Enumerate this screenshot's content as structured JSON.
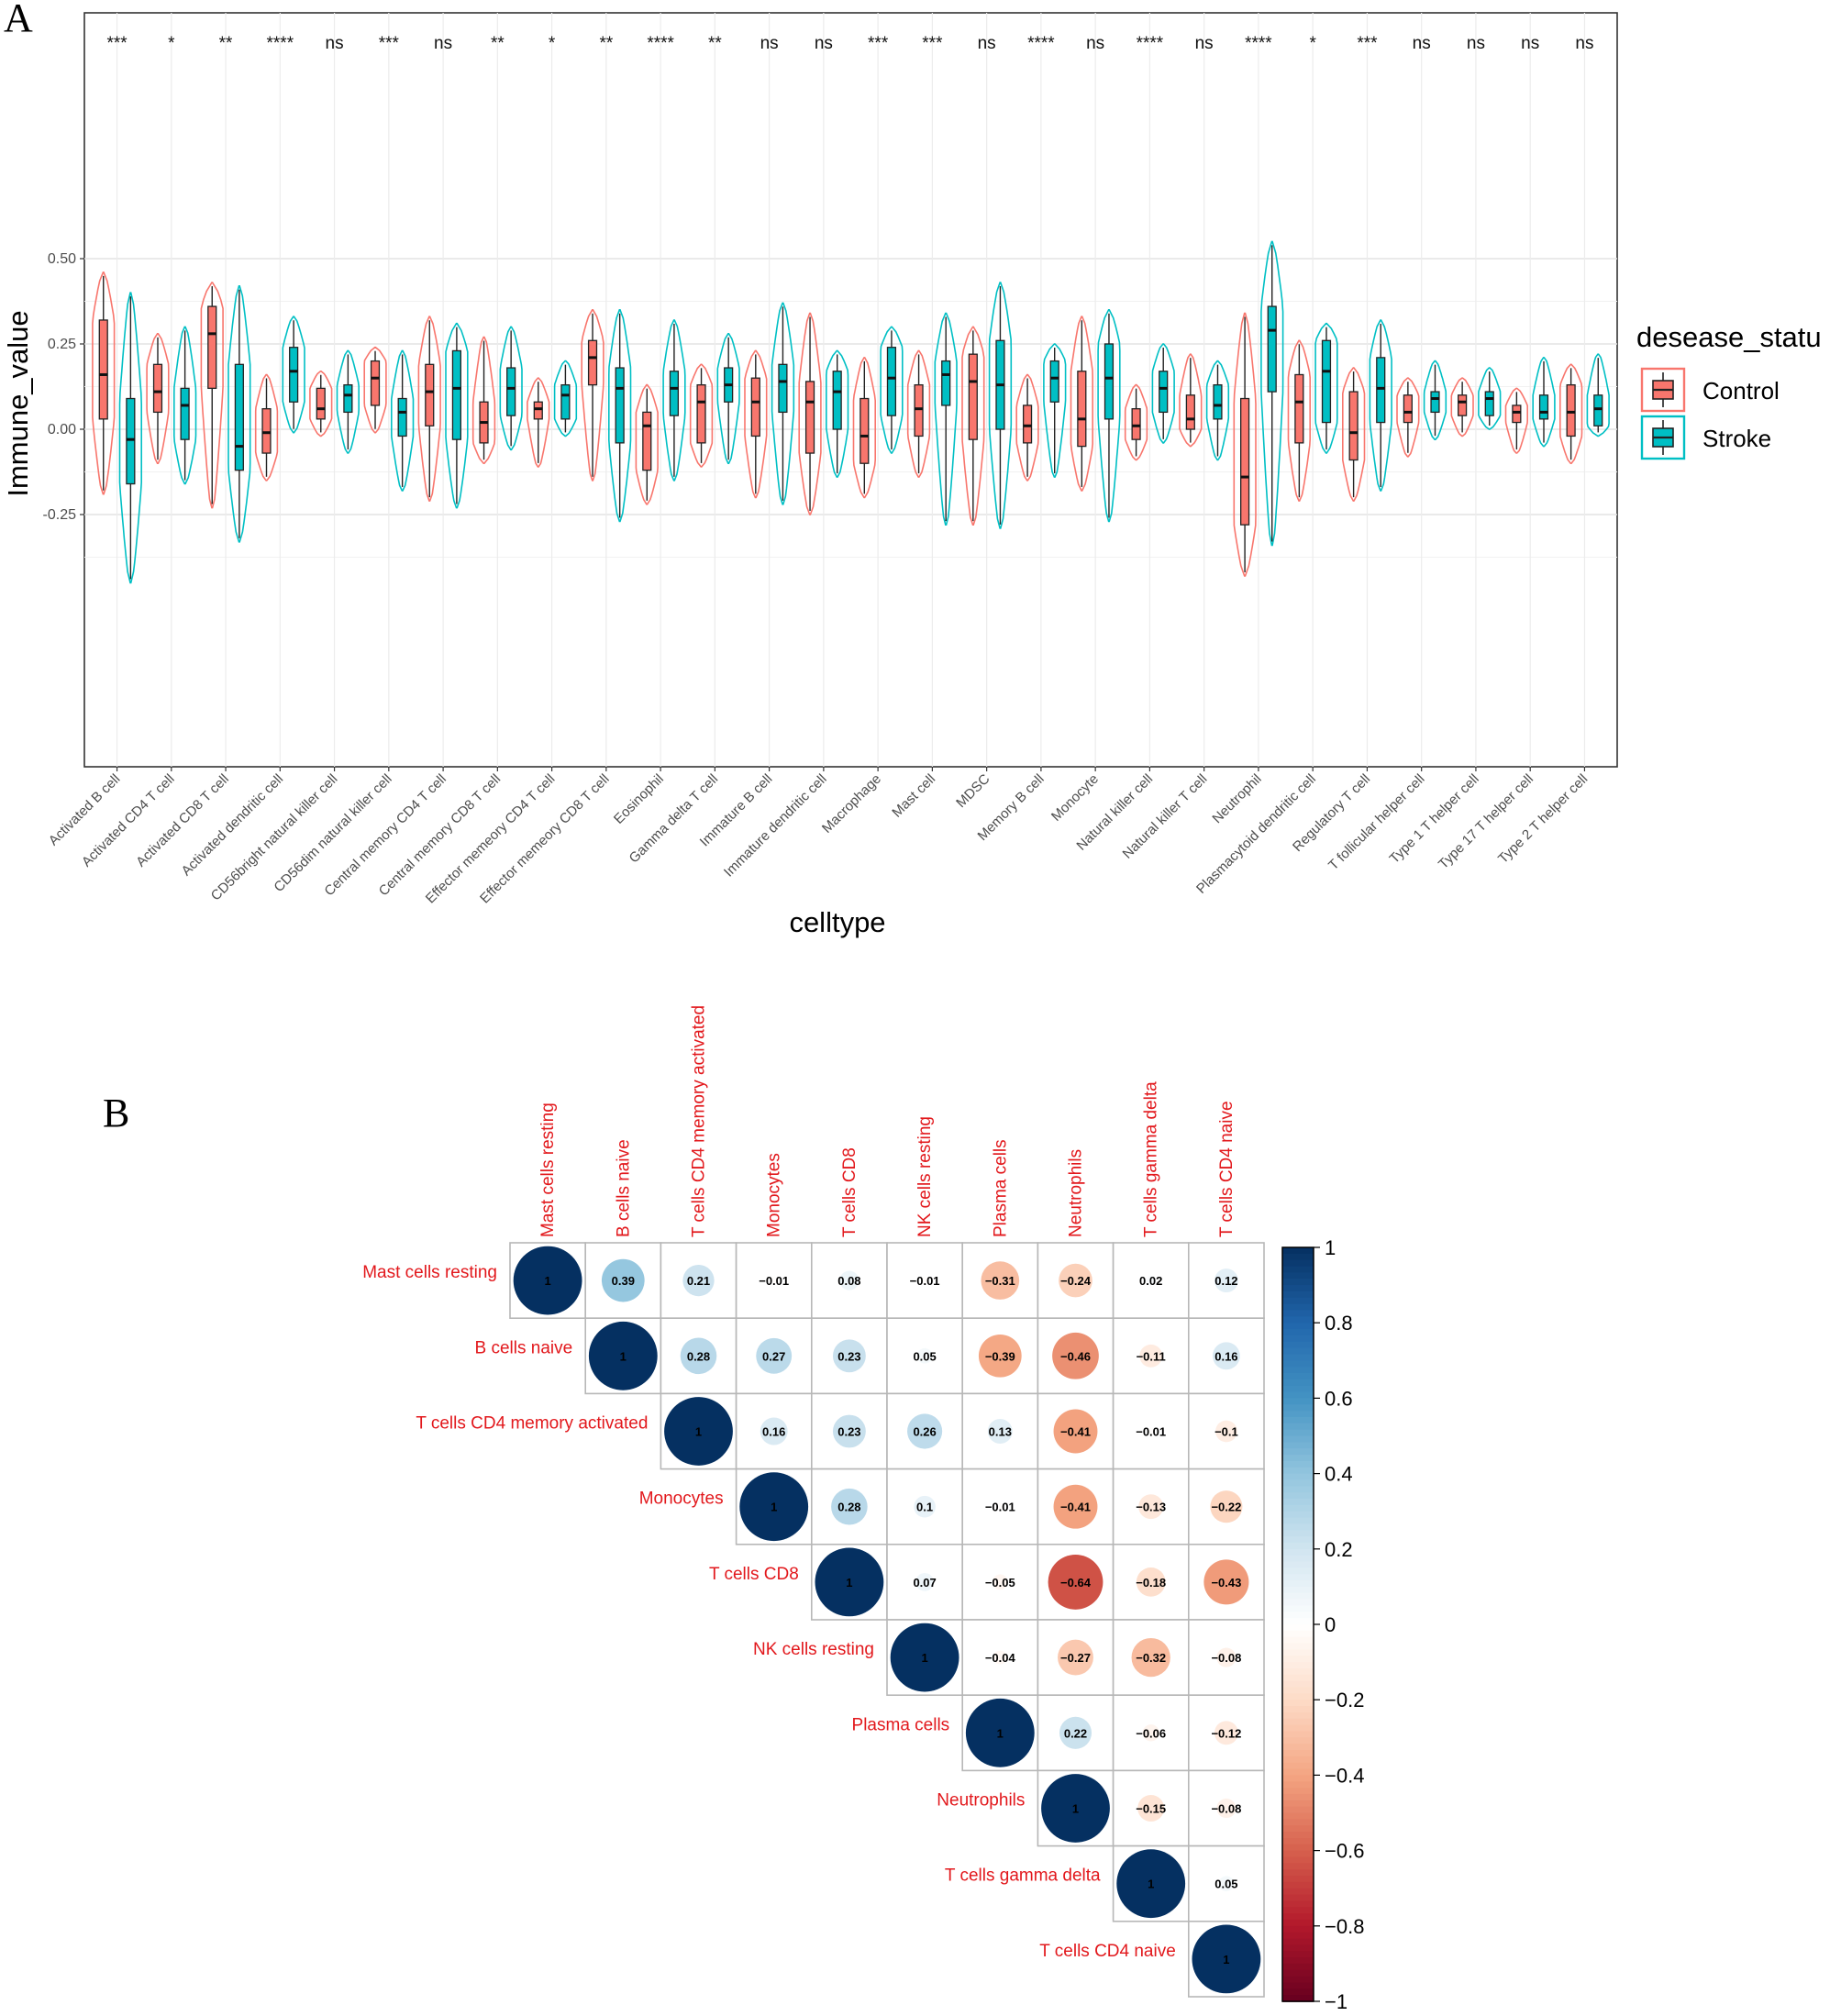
{
  "panel_a_letter": "A",
  "panel_b_letter": "B",
  "chart_data": [
    {
      "type": "violin-box",
      "xlabel": "celltype",
      "ylabel": "Immune_value",
      "ylim": [
        -0.5,
        0.6
      ],
      "yticks": [
        "0.50",
        "0.25",
        "0.00",
        "-0.25"
      ],
      "ytick_values": [
        0.5,
        0.25,
        0.0,
        -0.25
      ],
      "grid": true,
      "legend": {
        "title": "desease_statu",
        "position": "right"
      },
      "series": [
        {
          "name": "Control",
          "color": "#f8766d"
        },
        {
          "name": "Stroke",
          "color": "#00bfc4"
        }
      ],
      "categories": [
        "Activated B cell",
        "Activated CD4 T cell",
        "Activated CD8 T cell",
        "Activated dendritic cell",
        "CD56bright natural killer cell",
        "CD56dim natural killer cell",
        "Central memory CD4 T cell",
        "Central memory CD8 T cell",
        "Effector memeory CD4 T cell",
        "Effector memeory CD8 T cell",
        "Eosinophil",
        "Gamma delta T cell",
        "Immature  B cell",
        "Immature dendritic cell",
        "Macrophage",
        "Mast cell",
        "MDSC",
        "Memory B cell",
        "Monocyte",
        "Natural killer cell",
        "Natural killer T cell",
        "Neutrophil",
        "Plasmacytoid dendritic cell",
        "Regulatory T cell",
        "T follicular helper cell",
        "Type 1 T helper cell",
        "Type 17 T helper cell",
        "Type 2 T helper cell"
      ],
      "significance": [
        "***",
        "*",
        "**",
        "****",
        "ns",
        "***",
        "ns",
        "**",
        "*",
        "**",
        "****",
        "**",
        "ns",
        "ns",
        "***",
        "***",
        "ns",
        "****",
        "ns",
        "****",
        "ns",
        "****",
        "*",
        "***",
        "ns",
        "ns",
        "ns",
        "ns"
      ],
      "groups": [
        {
          "control": {
            "min": -0.19,
            "q1": 0.03,
            "med": 0.16,
            "q3": 0.32,
            "max": 0.46
          },
          "stroke": {
            "min": -0.45,
            "q1": -0.16,
            "med": -0.03,
            "q3": 0.09,
            "max": 0.4
          }
        },
        {
          "control": {
            "min": -0.1,
            "q1": 0.05,
            "med": 0.11,
            "q3": 0.19,
            "max": 0.28
          },
          "stroke": {
            "min": -0.16,
            "q1": -0.03,
            "med": 0.07,
            "q3": 0.12,
            "max": 0.3
          }
        },
        {
          "control": {
            "min": -0.23,
            "q1": 0.12,
            "med": 0.28,
            "q3": 0.36,
            "max": 0.43
          },
          "stroke": {
            "min": -0.33,
            "q1": -0.12,
            "med": -0.05,
            "q3": 0.19,
            "max": 0.42
          }
        },
        {
          "control": {
            "min": -0.15,
            "q1": -0.07,
            "med": -0.01,
            "q3": 0.06,
            "max": 0.16
          },
          "stroke": {
            "min": -0.01,
            "q1": 0.08,
            "med": 0.17,
            "q3": 0.24,
            "max": 0.33
          }
        },
        {
          "control": {
            "min": -0.02,
            "q1": 0.03,
            "med": 0.06,
            "q3": 0.12,
            "max": 0.17
          },
          "stroke": {
            "min": -0.07,
            "q1": 0.05,
            "med": 0.1,
            "q3": 0.13,
            "max": 0.23
          }
        },
        {
          "control": {
            "min": -0.01,
            "q1": 0.07,
            "med": 0.15,
            "q3": 0.2,
            "max": 0.24
          },
          "stroke": {
            "min": -0.18,
            "q1": -0.02,
            "med": 0.05,
            "q3": 0.09,
            "max": 0.23
          }
        },
        {
          "control": {
            "min": -0.21,
            "q1": 0.01,
            "med": 0.11,
            "q3": 0.19,
            "max": 0.33
          },
          "stroke": {
            "min": -0.23,
            "q1": -0.03,
            "med": 0.12,
            "q3": 0.23,
            "max": 0.31
          }
        },
        {
          "control": {
            "min": -0.1,
            "q1": -0.04,
            "med": 0.02,
            "q3": 0.08,
            "max": 0.27
          },
          "stroke": {
            "min": -0.06,
            "q1": 0.04,
            "med": 0.12,
            "q3": 0.18,
            "max": 0.3
          }
        },
        {
          "control": {
            "min": -0.11,
            "q1": 0.03,
            "med": 0.06,
            "q3": 0.08,
            "max": 0.15
          },
          "stroke": {
            "min": -0.02,
            "q1": 0.03,
            "med": 0.1,
            "q3": 0.13,
            "max": 0.2
          }
        },
        {
          "control": {
            "min": -0.15,
            "q1": 0.13,
            "med": 0.21,
            "q3": 0.26,
            "max": 0.35
          },
          "stroke": {
            "min": -0.27,
            "q1": -0.04,
            "med": 0.12,
            "q3": 0.18,
            "max": 0.35
          }
        },
        {
          "control": {
            "min": -0.22,
            "q1": -0.12,
            "med": 0.01,
            "q3": 0.05,
            "max": 0.13
          },
          "stroke": {
            "min": -0.15,
            "q1": 0.04,
            "med": 0.12,
            "q3": 0.17,
            "max": 0.32
          }
        },
        {
          "control": {
            "min": -0.11,
            "q1": -0.04,
            "med": 0.08,
            "q3": 0.13,
            "max": 0.19
          },
          "stroke": {
            "min": -0.1,
            "q1": 0.08,
            "med": 0.13,
            "q3": 0.18,
            "max": 0.28
          }
        },
        {
          "control": {
            "min": -0.2,
            "q1": -0.02,
            "med": 0.08,
            "q3": 0.15,
            "max": 0.23
          },
          "stroke": {
            "min": -0.22,
            "q1": 0.05,
            "med": 0.14,
            "q3": 0.19,
            "max": 0.37
          }
        },
        {
          "control": {
            "min": -0.25,
            "q1": -0.07,
            "med": 0.08,
            "q3": 0.14,
            "max": 0.34
          },
          "stroke": {
            "min": -0.14,
            "q1": 0.0,
            "med": 0.11,
            "q3": 0.17,
            "max": 0.23
          }
        },
        {
          "control": {
            "min": -0.2,
            "q1": -0.1,
            "med": -0.02,
            "q3": 0.09,
            "max": 0.21
          },
          "stroke": {
            "min": -0.07,
            "q1": 0.04,
            "med": 0.15,
            "q3": 0.24,
            "max": 0.3
          }
        },
        {
          "control": {
            "min": -0.14,
            "q1": -0.02,
            "med": 0.06,
            "q3": 0.13,
            "max": 0.23
          },
          "stroke": {
            "min": -0.28,
            "q1": 0.07,
            "med": 0.16,
            "q3": 0.2,
            "max": 0.34
          }
        },
        {
          "control": {
            "min": -0.28,
            "q1": -0.03,
            "med": 0.14,
            "q3": 0.22,
            "max": 0.3
          },
          "stroke": {
            "min": -0.29,
            "q1": 0.0,
            "med": 0.13,
            "q3": 0.26,
            "max": 0.43
          }
        },
        {
          "control": {
            "min": -0.15,
            "q1": -0.04,
            "med": 0.01,
            "q3": 0.07,
            "max": 0.16
          },
          "stroke": {
            "min": -0.14,
            "q1": 0.08,
            "med": 0.15,
            "q3": 0.2,
            "max": 0.25
          }
        },
        {
          "control": {
            "min": -0.18,
            "q1": -0.05,
            "med": 0.03,
            "q3": 0.17,
            "max": 0.33
          },
          "stroke": {
            "min": -0.27,
            "q1": 0.03,
            "med": 0.15,
            "q3": 0.25,
            "max": 0.35
          }
        },
        {
          "control": {
            "min": -0.09,
            "q1": -0.03,
            "med": 0.01,
            "q3": 0.06,
            "max": 0.13
          },
          "stroke": {
            "min": -0.04,
            "q1": 0.05,
            "med": 0.12,
            "q3": 0.17,
            "max": 0.25
          }
        },
        {
          "control": {
            "min": -0.05,
            "q1": 0.0,
            "med": 0.03,
            "q3": 0.1,
            "max": 0.22
          },
          "stroke": {
            "min": -0.09,
            "q1": 0.03,
            "med": 0.07,
            "q3": 0.13,
            "max": 0.2
          }
        },
        {
          "control": {
            "min": -0.43,
            "q1": -0.28,
            "med": -0.14,
            "q3": 0.09,
            "max": 0.34
          },
          "stroke": {
            "min": -0.34,
            "q1": 0.11,
            "med": 0.29,
            "q3": 0.36,
            "max": 0.55
          }
        },
        {
          "control": {
            "min": -0.21,
            "q1": -0.04,
            "med": 0.08,
            "q3": 0.16,
            "max": 0.26
          },
          "stroke": {
            "min": -0.07,
            "q1": 0.02,
            "med": 0.17,
            "q3": 0.26,
            "max": 0.31
          }
        },
        {
          "control": {
            "min": -0.21,
            "q1": -0.09,
            "med": -0.01,
            "q3": 0.11,
            "max": 0.18
          },
          "stroke": {
            "min": -0.18,
            "q1": 0.02,
            "med": 0.12,
            "q3": 0.21,
            "max": 0.32
          }
        },
        {
          "control": {
            "min": -0.08,
            "q1": 0.02,
            "med": 0.05,
            "q3": 0.1,
            "max": 0.15
          },
          "stroke": {
            "min": -0.03,
            "q1": 0.05,
            "med": 0.09,
            "q3": 0.11,
            "max": 0.2
          }
        },
        {
          "control": {
            "min": -0.02,
            "q1": 0.04,
            "med": 0.08,
            "q3": 0.1,
            "max": 0.15
          },
          "stroke": {
            "min": 0.0,
            "q1": 0.04,
            "med": 0.09,
            "q3": 0.11,
            "max": 0.18
          }
        },
        {
          "control": {
            "min": -0.07,
            "q1": 0.02,
            "med": 0.05,
            "q3": 0.07,
            "max": 0.12
          },
          "stroke": {
            "min": -0.05,
            "q1": 0.03,
            "med": 0.05,
            "q3": 0.1,
            "max": 0.21
          }
        },
        {
          "control": {
            "min": -0.1,
            "q1": -0.02,
            "med": 0.05,
            "q3": 0.13,
            "max": 0.19
          },
          "stroke": {
            "min": -0.02,
            "q1": 0.01,
            "med": 0.06,
            "q3": 0.1,
            "max": 0.22
          }
        }
      ]
    },
    {
      "type": "heatmap",
      "style": "correlation-circles-upper-triangle",
      "labels": [
        "Mast cells resting",
        "B cells naive",
        "T cells CD4 memory activated",
        "Monocytes",
        "T cells CD8",
        "NK cells resting",
        "Plasma cells",
        "Neutrophils",
        "T cells gamma delta",
        "T cells CD4 naive"
      ],
      "matrix": [
        [
          1,
          0.39,
          0.21,
          -0.01,
          0.08,
          -0.01,
          -0.31,
          -0.24,
          0.02,
          0.12
        ],
        [
          null,
          1,
          0.28,
          0.27,
          0.23,
          0.05,
          -0.39,
          -0.46,
          -0.11,
          0.16
        ],
        [
          null,
          null,
          1,
          0.16,
          0.23,
          0.26,
          0.13,
          -0.41,
          -0.01,
          -0.1
        ],
        [
          null,
          null,
          null,
          1,
          0.28,
          0.1,
          -0.01,
          -0.41,
          -0.13,
          -0.22
        ],
        [
          null,
          null,
          null,
          null,
          1,
          0.07,
          -0.05,
          -0.64,
          -0.18,
          -0.43
        ],
        [
          null,
          null,
          null,
          null,
          null,
          1,
          -0.04,
          -0.27,
          -0.32,
          -0.08
        ],
        [
          null,
          null,
          null,
          null,
          null,
          null,
          1,
          0.22,
          -0.06,
          -0.12
        ],
        [
          null,
          null,
          null,
          null,
          null,
          null,
          null,
          1,
          -0.15,
          -0.08
        ],
        [
          null,
          null,
          null,
          null,
          null,
          null,
          null,
          null,
          1,
          0.05
        ],
        [
          null,
          null,
          null,
          null,
          null,
          null,
          null,
          null,
          null,
          1
        ]
      ],
      "value_labels": [
        [
          "1",
          "0.39",
          "0.21",
          "−0.01",
          "0.08",
          "−0.01",
          "−0.31",
          "−0.24",
          "0.02",
          "0.12"
        ],
        [
          "",
          "1",
          "0.28",
          "0.27",
          "0.23",
          "0.05",
          "−0.39",
          "−0.46",
          "−0.11",
          "0.16"
        ],
        [
          "",
          "",
          "1",
          "0.16",
          "0.23",
          "0.26",
          "0.13",
          "−0.41",
          "−0.01",
          "−0.1"
        ],
        [
          "",
          "",
          "",
          "1",
          "0.28",
          "0.1",
          "−0.01",
          "−0.41",
          "−0.13",
          "−0.22"
        ],
        [
          "",
          "",
          "",
          "",
          "1",
          "0.07",
          "−0.05",
          "−0.64",
          "−0.18",
          "−0.43"
        ],
        [
          "",
          "",
          "",
          "",
          "",
          "1",
          "−0.04",
          "−0.27",
          "−0.32",
          "−0.08"
        ],
        [
          "",
          "",
          "",
          "",
          "",
          "",
          "1",
          "0.22",
          "−0.06",
          "−0.12"
        ],
        [
          "",
          "",
          "",
          "",
          "",
          "",
          "",
          "1",
          "−0.15",
          "−0.08"
        ],
        [
          "",
          "",
          "",
          "",
          "",
          "",
          "",
          "",
          "1",
          "0.05"
        ],
        [
          "",
          "",
          "",
          "",
          "",
          "",
          "",
          "",
          "",
          "1"
        ]
      ],
      "colorbar": {
        "range": [
          -1,
          1
        ],
        "ticks": [
          "1",
          "0.8",
          "0.6",
          "0.4",
          "0.2",
          "0",
          "−0.2",
          "−0.4",
          "−0.6",
          "−0.8",
          "−1"
        ],
        "tick_values": [
          1,
          0.8,
          0.6,
          0.4,
          0.2,
          0,
          -0.2,
          -0.4,
          -0.6,
          -0.8,
          -1
        ],
        "colors": {
          "neg": "#67001f",
          "mid": "#ffffff",
          "pos": "#053061"
        }
      },
      "label_color": "#e2181c"
    }
  ]
}
